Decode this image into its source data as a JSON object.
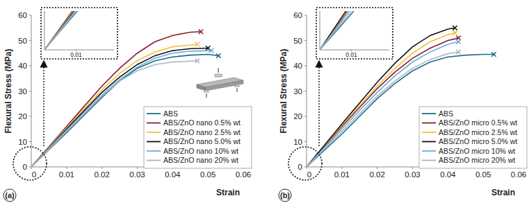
{
  "chart_data": [
    {
      "type": "line",
      "title": "(a)",
      "x_label": "Strain",
      "y_label": "Flexural Stress (MPa)",
      "xlim": [
        0,
        0.06
      ],
      "ylim": [
        0,
        60
      ],
      "xticks": [
        0,
        0.01,
        0.02,
        0.03,
        0.04,
        0.05,
        0.06
      ],
      "yticks": [
        0,
        10,
        20,
        30,
        40,
        50,
        60
      ],
      "grid": false,
      "legend": "lower right",
      "inset_xlim": [
        0,
        0.022
      ],
      "inset_ylim": [
        0,
        14
      ],
      "inset_xticks": [
        0.01
      ],
      "series": [
        {
          "name": "ABS",
          "color": "#1b6b8c",
          "marker": "x",
          "x": [
            0,
            0.005,
            0.01,
            0.015,
            0.02,
            0.025,
            0.03,
            0.035,
            0.04,
            0.045,
            0.05,
            0.053
          ],
          "values": [
            0,
            6.8,
            13.5,
            20.5,
            27.5,
            34,
            39,
            42,
            43.5,
            44.2,
            44.5,
            44
          ]
        },
        {
          "name": "ABS/ZnO nano 0.5% wt",
          "color": "#8b1c2c",
          "marker": "x",
          "x": [
            0,
            0.005,
            0.01,
            0.015,
            0.02,
            0.025,
            0.03,
            0.035,
            0.04,
            0.045,
            0.048
          ],
          "values": [
            0,
            8,
            16,
            24,
            32,
            39,
            45,
            49.5,
            52,
            53.3,
            53.5
          ]
        },
        {
          "name": "ABS/ZnO nano 2.5% wt",
          "color": "#f4c13f",
          "marker": "x",
          "x": [
            0,
            0.005,
            0.01,
            0.015,
            0.02,
            0.025,
            0.03,
            0.035,
            0.04,
            0.047
          ],
          "values": [
            0,
            7.8,
            15.5,
            23,
            30.5,
            37,
            42,
            45.5,
            47.5,
            48.5
          ]
        },
        {
          "name": "ABS/ZnO nano 5.0% wt",
          "color": "#111111",
          "marker": "x",
          "x": [
            0,
            0.005,
            0.01,
            0.015,
            0.02,
            0.025,
            0.03,
            0.035,
            0.04,
            0.045,
            0.05
          ],
          "values": [
            0,
            7.5,
            15,
            22.3,
            29.5,
            35.5,
            40.5,
            44,
            46,
            46.8,
            47
          ]
        },
        {
          "name": "ABS/ZnO nano 10% wt",
          "color": "#6aaddf",
          "marker": "x",
          "x": [
            0,
            0.005,
            0.01,
            0.015,
            0.02,
            0.025,
            0.03,
            0.035,
            0.04,
            0.045,
            0.051
          ],
          "values": [
            0,
            7.3,
            14.5,
            21.5,
            28.5,
            34.5,
            39.5,
            43,
            45,
            45.8,
            46
          ]
        },
        {
          "name": "ABS/ZnO nano 20% wt",
          "color": "#a9b5c2",
          "marker": "x",
          "x": [
            0,
            0.005,
            0.01,
            0.015,
            0.02,
            0.025,
            0.03,
            0.035,
            0.04,
            0.047
          ],
          "values": [
            0,
            7,
            14,
            21,
            28,
            34,
            38,
            40.5,
            41.5,
            42
          ]
        }
      ]
    },
    {
      "type": "line",
      "title": "(b)",
      "x_label": "Strain",
      "y_label": "Flexural Stress (MPa)",
      "xlim": [
        0,
        0.06
      ],
      "ylim": [
        0,
        60
      ],
      "xticks": [
        0,
        0.01,
        0.02,
        0.03,
        0.04,
        0.05,
        0.06
      ],
      "yticks": [
        0,
        10,
        20,
        30,
        40,
        50,
        60
      ],
      "grid": false,
      "legend": "lower right",
      "inset_xlim": [
        0,
        0.022
      ],
      "inset_ylim": [
        0,
        14
      ],
      "inset_xticks": [
        0.01
      ],
      "series": [
        {
          "name": "ABS",
          "color": "#1b6b8c",
          "marker": "x",
          "x": [
            0,
            0.005,
            0.01,
            0.015,
            0.02,
            0.025,
            0.03,
            0.035,
            0.04,
            0.045,
            0.05,
            0.053
          ],
          "values": [
            0,
            6.5,
            13,
            20,
            27,
            33,
            38,
            41.5,
            43.5,
            44.2,
            44.5,
            44.5
          ]
        },
        {
          "name": "ABS/ZnO micro 0.5% wt",
          "color": "#8b1c2c",
          "marker": "x",
          "x": [
            0,
            0.005,
            0.01,
            0.015,
            0.02,
            0.025,
            0.03,
            0.035,
            0.04,
            0.043
          ],
          "values": [
            0,
            8,
            16,
            23.5,
            31,
            37.5,
            43,
            47,
            50,
            51
          ]
        },
        {
          "name": "ABS/ZnO micro 2.5% wt",
          "color": "#f4c13f",
          "marker": "x",
          "x": [
            0,
            0.005,
            0.01,
            0.015,
            0.02,
            0.025,
            0.03,
            0.035,
            0.04,
            0.042
          ],
          "values": [
            0,
            8.3,
            16.5,
            24.3,
            32,
            39,
            45,
            49.5,
            52.3,
            53
          ]
        },
        {
          "name": "ABS/ZnO micro 5.0% wt",
          "color": "#111111",
          "marker": "x",
          "x": [
            0,
            0.005,
            0.01,
            0.015,
            0.02,
            0.025,
            0.03,
            0.035,
            0.04,
            0.042
          ],
          "values": [
            0,
            8.5,
            17,
            25.3,
            33.5,
            41,
            47.5,
            52,
            54.5,
            55
          ]
        },
        {
          "name": "ABS/ZnO micro 10% wt",
          "color": "#6aaddf",
          "marker": "x",
          "x": [
            0,
            0.005,
            0.01,
            0.015,
            0.02,
            0.025,
            0.03,
            0.035,
            0.04,
            0.043
          ],
          "values": [
            0,
            7.5,
            15,
            22.3,
            29.5,
            36,
            41.5,
            45.5,
            48.5,
            49.5
          ]
        },
        {
          "name": "ABS/ZnO micro 20% wt",
          "color": "#a9b5c2",
          "marker": "x",
          "x": [
            0,
            0.005,
            0.01,
            0.015,
            0.02,
            0.025,
            0.03,
            0.035,
            0.04,
            0.043
          ],
          "values": [
            0,
            7,
            14,
            21,
            28,
            34,
            39,
            42.5,
            44.8,
            45.5
          ]
        }
      ]
    }
  ]
}
